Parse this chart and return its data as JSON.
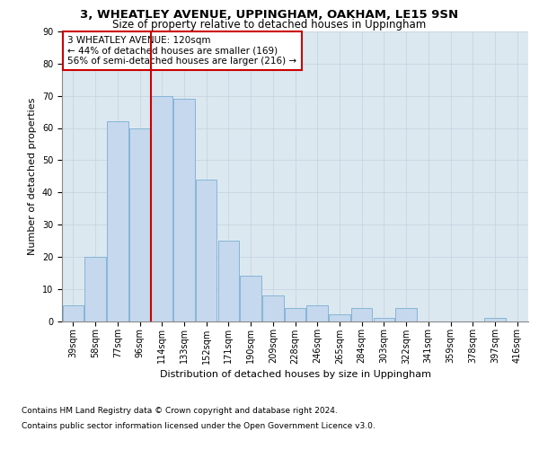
{
  "title1": "3, WHEATLEY AVENUE, UPPINGHAM, OAKHAM, LE15 9SN",
  "title2": "Size of property relative to detached houses in Uppingham",
  "xlabel": "Distribution of detached houses by size in Uppingham",
  "ylabel": "Number of detached properties",
  "categories": [
    "39sqm",
    "58sqm",
    "77sqm",
    "96sqm",
    "114sqm",
    "133sqm",
    "152sqm",
    "171sqm",
    "190sqm",
    "209sqm",
    "228sqm",
    "246sqm",
    "265sqm",
    "284sqm",
    "303sqm",
    "322sqm",
    "341sqm",
    "359sqm",
    "378sqm",
    "397sqm",
    "416sqm"
  ],
  "values": [
    5,
    20,
    62,
    60,
    70,
    69,
    44,
    25,
    14,
    8,
    4,
    5,
    2,
    4,
    1,
    4,
    0,
    0,
    0,
    1,
    0
  ],
  "bar_color": "#c5d8ed",
  "bar_edge_color": "#7bafd4",
  "vline_x_index": 4,
  "vline_color": "#cc0000",
  "annotation_text": "3 WHEATLEY AVENUE: 120sqm\n← 44% of detached houses are smaller (169)\n56% of semi-detached houses are larger (216) →",
  "annotation_box_color": "#ffffff",
  "annotation_box_edge": "#cc0000",
  "footnote1": "Contains HM Land Registry data © Crown copyright and database right 2024.",
  "footnote2": "Contains public sector information licensed under the Open Government Licence v3.0.",
  "ylim": [
    0,
    90
  ],
  "yticks": [
    0,
    10,
    20,
    30,
    40,
    50,
    60,
    70,
    80,
    90
  ],
  "grid_color": "#c8d4e0",
  "bg_color": "#dce8f0",
  "title1_fontsize": 9.5,
  "title2_fontsize": 8.5,
  "tick_fontsize": 7,
  "label_fontsize": 8,
  "footnote_fontsize": 6.5,
  "annotation_fontsize": 7.5
}
